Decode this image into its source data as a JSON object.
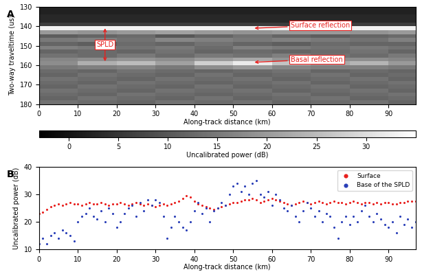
{
  "chart_data": [
    {
      "type": "heatmap",
      "panel_label": "A",
      "x_label": "Along-track distance (km)",
      "y_label": "Two-way traveltime (us)",
      "xlim": [
        0,
        97
      ],
      "ylim": [
        180,
        130
      ],
      "xticks": [
        0,
        10,
        20,
        30,
        40,
        50,
        60,
        70,
        80,
        90
      ],
      "yticks": [
        130,
        140,
        150,
        160,
        170,
        180
      ],
      "x_edges": [
        0,
        10,
        20,
        30,
        40,
        50,
        60,
        70,
        80,
        90,
        97
      ],
      "y_edges": [
        130,
        132,
        134,
        136,
        138,
        140,
        142,
        144,
        146,
        148,
        150,
        152,
        154,
        156,
        158,
        160,
        162,
        164,
        166,
        168,
        170,
        172,
        174,
        176,
        178,
        180
      ],
      "cells": [
        [
          2,
          2,
          2,
          2,
          2,
          2,
          2,
          2,
          2,
          2
        ],
        [
          2,
          2,
          2,
          2,
          2,
          2,
          2,
          2,
          2,
          2
        ],
        [
          3,
          3,
          3,
          3,
          3,
          3,
          3,
          3,
          3,
          3
        ],
        [
          3,
          3,
          3,
          3,
          3,
          3,
          3,
          3,
          3,
          3
        ],
        [
          6,
          6,
          6,
          6,
          6,
          6,
          6,
          6,
          6,
          6
        ],
        [
          33,
          33,
          33,
          33,
          33,
          33,
          33,
          33,
          33,
          33
        ],
        [
          20,
          19,
          20,
          21,
          20,
          19,
          20,
          20,
          19,
          20
        ],
        [
          11,
          12,
          13,
          10,
          12,
          14,
          12,
          11,
          12,
          13
        ],
        [
          15,
          16,
          14,
          17,
          16,
          15,
          16,
          15,
          14,
          16
        ],
        [
          12,
          11,
          13,
          12,
          14,
          12,
          11,
          13,
          12,
          12
        ],
        [
          16,
          15,
          14,
          15,
          13,
          16,
          15,
          14,
          15,
          14
        ],
        [
          12,
          13,
          12,
          14,
          12,
          13,
          12,
          13,
          14,
          12
        ],
        [
          14,
          13,
          15,
          13,
          15,
          14,
          16,
          14,
          13,
          15
        ],
        [
          17,
          18,
          19,
          18,
          20,
          22,
          19,
          18,
          18,
          17
        ],
        [
          18,
          23,
          25,
          21,
          28,
          32,
          26,
          22,
          24,
          20
        ],
        [
          15,
          16,
          17,
          15,
          18,
          20,
          17,
          16,
          16,
          15
        ],
        [
          13,
          12,
          14,
          13,
          12,
          13,
          14,
          12,
          13,
          12
        ],
        [
          12,
          14,
          13,
          12,
          14,
          12,
          13,
          14,
          12,
          13
        ],
        [
          14,
          13,
          12,
          14,
          13,
          14,
          12,
          13,
          14,
          12
        ],
        [
          13,
          12,
          14,
          13,
          12,
          13,
          14,
          12,
          13,
          14
        ],
        [
          12,
          14,
          13,
          12,
          14,
          12,
          13,
          14,
          12,
          13
        ],
        [
          14,
          13,
          12,
          14,
          13,
          14,
          12,
          13,
          14,
          12
        ],
        [
          13,
          12,
          14,
          13,
          12,
          13,
          14,
          12,
          13,
          14
        ],
        [
          12,
          14,
          13,
          12,
          14,
          12,
          13,
          14,
          12,
          13
        ],
        [
          14,
          13,
          12,
          14,
          13,
          14,
          12,
          13,
          14,
          12
        ]
      ],
      "colorbar_label": "Uncalibrated power (dB)",
      "colorbar_range": [
        -3,
        35
      ],
      "colorbar_ticks": [
        0,
        5,
        10,
        15,
        20,
        25,
        30
      ],
      "annotations": [
        {
          "text": "Surface reflection",
          "x": 55,
          "y": 141
        },
        {
          "text": "Basal reflection",
          "x": 55,
          "y": 158.5
        },
        {
          "text": "SPLD",
          "x": 17,
          "y_range": [
            140,
            159
          ]
        }
      ]
    },
    {
      "type": "scatter",
      "panel_label": "B",
      "x_label": "Along-track distance (km)",
      "y_label": "Uncalibrated power (dB)",
      "xlim": [
        0,
        97
      ],
      "ylim": [
        10,
        40
      ],
      "xticks": [
        0,
        10,
        20,
        30,
        40,
        50,
        60,
        70,
        80,
        90
      ],
      "yticks": [
        10,
        20,
        30,
        40
      ],
      "legend": "upper right",
      "x": [
        0,
        1,
        2,
        3,
        4,
        5,
        6,
        7,
        8,
        9,
        10,
        11,
        12,
        13,
        14,
        15,
        16,
        17,
        18,
        19,
        20,
        21,
        22,
        23,
        24,
        25,
        26,
        27,
        28,
        29,
        30,
        31,
        32,
        33,
        34,
        35,
        36,
        37,
        38,
        39,
        40,
        41,
        42,
        43,
        44,
        45,
        46,
        47,
        48,
        49,
        50,
        51,
        52,
        53,
        54,
        55,
        56,
        57,
        58,
        59,
        60,
        61,
        62,
        63,
        64,
        65,
        66,
        67,
        68,
        69,
        70,
        71,
        72,
        73,
        74,
        75,
        76,
        77,
        78,
        79,
        80,
        81,
        82,
        83,
        84,
        85,
        86,
        87,
        88,
        89,
        90,
        91,
        92,
        93,
        94,
        95,
        96,
        97
      ],
      "series": [
        {
          "name": "Surface",
          "color": "#e8201e",
          "marker": "o",
          "values": [
            23,
            23.5,
            24.5,
            25.5,
            26,
            26.5,
            26,
            26.5,
            27,
            26.5,
            26.5,
            26,
            26.5,
            27,
            26.5,
            26.5,
            27,
            26.5,
            26,
            26.5,
            26.5,
            27,
            26.5,
            26,
            26.5,
            27,
            26.5,
            26,
            26.5,
            26,
            25.5,
            26,
            26.5,
            26,
            26.5,
            27,
            27.5,
            28.5,
            29.5,
            29,
            27.5,
            26.5,
            26,
            25.5,
            25,
            24.5,
            25,
            25.5,
            26,
            26.5,
            27,
            27,
            27.5,
            28,
            28,
            28.5,
            28,
            27,
            27.5,
            28,
            28.5,
            28,
            27.5,
            27,
            26.5,
            26,
            26.5,
            27,
            27.5,
            27,
            26.5,
            27,
            27.5,
            27,
            26.5,
            27,
            27.5,
            27,
            27,
            26.5,
            27,
            27.5,
            27,
            26.5,
            27,
            27,
            26.5,
            27,
            26.5,
            27,
            27,
            26.5,
            26.5,
            27,
            27,
            27.5,
            27.5,
            27.5
          ]
        },
        {
          "name": "Base of the SPLD",
          "color": "#2a3fb8",
          "marker": "o",
          "values": [
            12,
            14,
            12,
            15,
            16,
            14,
            17,
            16,
            15,
            13,
            20,
            22,
            23,
            25,
            22,
            21,
            24,
            20,
            25,
            23,
            18,
            20,
            23,
            25,
            26,
            22,
            27,
            24,
            28,
            26,
            28,
            27,
            22,
            14,
            18,
            22,
            20,
            18,
            17,
            20,
            24,
            27,
            23,
            25,
            20,
            24,
            25,
            27,
            26,
            30,
            33,
            34,
            31,
            33,
            30,
            34,
            35,
            30,
            29,
            31,
            26,
            30,
            28,
            25,
            24,
            26,
            22,
            20,
            24,
            27,
            25,
            22,
            24,
            20,
            23,
            22,
            18,
            14,
            20,
            22,
            19,
            22,
            20,
            24,
            26,
            22,
            20,
            23,
            21,
            19,
            18,
            20,
            16,
            22,
            19,
            21,
            18,
            20
          ]
        }
      ]
    }
  ]
}
